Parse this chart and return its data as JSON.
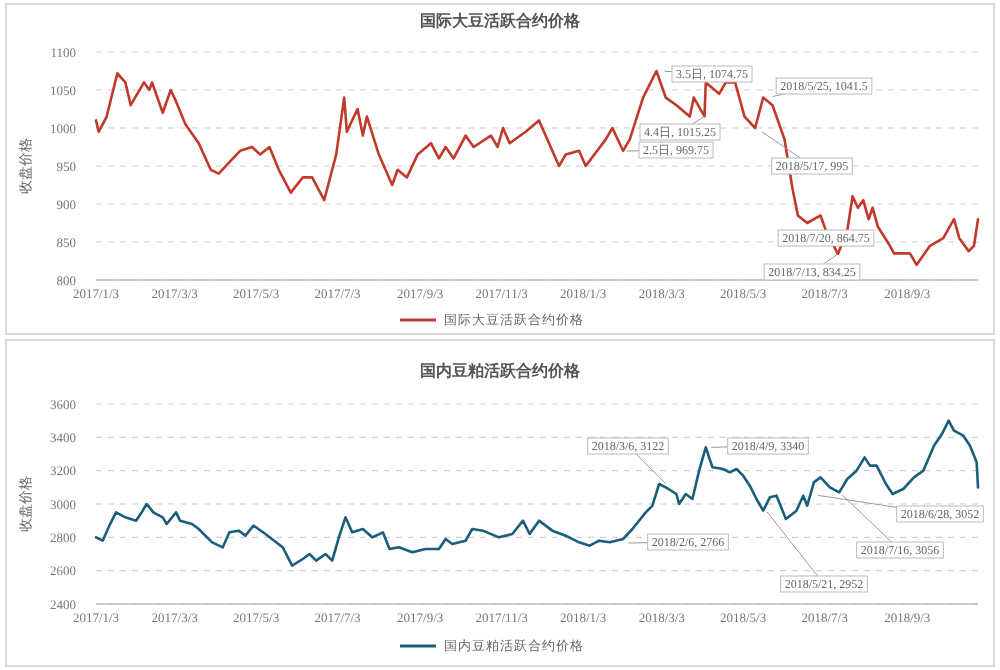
{
  "chart_data": [
    {
      "type": "line",
      "title": "国际大豆活跃合约价格",
      "ylabel": "收盘价格",
      "x": [
        "2017-01-03",
        "2017-01-05",
        "2017-01-11",
        "2017-01-19",
        "2017-01-25",
        "2017-01-29",
        "2017-02-08",
        "2017-02-12",
        "2017-02-14",
        "2017-02-22",
        "2017-02-28",
        "2017-03-04",
        "2017-03-11",
        "2017-03-21",
        "2017-03-30",
        "2017-04-05",
        "2017-04-13",
        "2017-04-21",
        "2017-04-30",
        "2017-05-06",
        "2017-05-13",
        "2017-05-20",
        "2017-05-29",
        "2017-06-07",
        "2017-06-14",
        "2017-06-23",
        "2017-07-02",
        "2017-07-08",
        "2017-07-10",
        "2017-07-18",
        "2017-07-22",
        "2017-07-25",
        "2017-08-03",
        "2017-08-13",
        "2017-08-17",
        "2017-08-24",
        "2017-09-01",
        "2017-09-11",
        "2017-09-17",
        "2017-09-22",
        "2017-09-28",
        "2017-10-07",
        "2017-10-13",
        "2017-10-26",
        "2017-10-31",
        "2017-11-04",
        "2017-11-09",
        "2017-11-21",
        "2017-12-01",
        "2017-12-11",
        "2017-12-16",
        "2017-12-21",
        "2017-12-31",
        "2018-01-05",
        "2018-01-20",
        "2018-01-25",
        "2018-02-02",
        "2018-02-07",
        "2018-02-17",
        "2018-02-27",
        "2018-03-06",
        "2018-03-14",
        "2018-03-24",
        "2018-03-27",
        "2018-04-04",
        "2018-04-05",
        "2018-04-15",
        "2018-04-20",
        "2018-04-27",
        "2018-05-04",
        "2018-05-12",
        "2018-05-18",
        "2018-05-25",
        "2018-06-03",
        "2018-06-09",
        "2018-06-13",
        "2018-06-20",
        "2018-06-30",
        "2018-07-04",
        "2018-07-13",
        "2018-07-20",
        "2018-07-24",
        "2018-07-28",
        "2018-08-01",
        "2018-08-05",
        "2018-08-08",
        "2018-08-12",
        "2018-08-21",
        "2018-08-24",
        "2018-09-05",
        "2018-09-10",
        "2018-09-20",
        "2018-09-30",
        "2018-10-08",
        "2018-10-12",
        "2018-10-19",
        "2018-10-23",
        "2018-10-26"
      ],
      "series": [
        {
          "name": "国际大豆活跃合约价格",
          "color": "#c0392b",
          "values": [
            1010,
            995,
            1015,
            1072,
            1060,
            1030,
            1060,
            1050,
            1060,
            1020,
            1050,
            1035,
            1005,
            980,
            945,
            940,
            955,
            970,
            975,
            965,
            975,
            945,
            915,
            935,
            935,
            905,
            965,
            1040,
            995,
            1025,
            990,
            1015,
            965,
            925,
            945,
            935,
            965,
            980,
            960,
            975,
            960,
            990,
            975,
            990,
            975,
            1000,
            980,
            995,
            1010,
            970,
            950,
            965,
            970,
            950,
            985,
            1000,
            970,
            985,
            1040,
            1075,
            1040,
            1030,
            1015,
            1040,
            1015.25,
            1060,
            1045,
            1060,
            1060,
            1015,
            1000,
            1040,
            1030,
            985,
            920,
            885,
            875,
            885,
            865,
            834.25,
            864.75,
            910,
            895,
            905,
            880,
            895,
            870,
            845,
            835,
            835,
            820,
            845,
            855,
            880,
            855,
            838,
            845,
            880
          ]
        }
      ],
      "xlim": [
        "2017-01-03",
        "2018-10-26"
      ],
      "xticks": [
        {
          "value": "2017-01-03",
          "label": "2017/1/3"
        },
        {
          "value": "2017-03-03",
          "label": "2017/3/3"
        },
        {
          "value": "2017-05-03",
          "label": "2017/5/3"
        },
        {
          "value": "2017-07-03",
          "label": "2017/7/3"
        },
        {
          "value": "2017-09-03",
          "label": "2017/9/3"
        },
        {
          "value": "2017-11-03",
          "label": "2017/11/3"
        },
        {
          "value": "2018-01-03",
          "label": "2018/1/3"
        },
        {
          "value": "2018-03-03",
          "label": "2018/3/3"
        },
        {
          "value": "2018-05-03",
          "label": "2018/5/3"
        },
        {
          "value": "2018-07-03",
          "label": "2018/7/3"
        },
        {
          "value": "2018-09-03",
          "label": "2018/9/3"
        }
      ],
      "ylim": [
        800,
        1100
      ],
      "yticks": [
        800,
        850,
        900,
        950,
        1000,
        1050,
        1100
      ],
      "grid": "y",
      "legend": "bottom",
      "annotations": [
        {
          "text": "3.5日, 1074.75",
          "x": "2018-03-05",
          "y": 1074.75
        },
        {
          "text": "2018/5/25, 1041.5",
          "x": "2018-05-25",
          "y": 1041.5
        },
        {
          "text": "4.4日, 1015.25",
          "x": "2018-04-04",
          "y": 1015.25
        },
        {
          "text": "2.5日, 969.75",
          "x": "2018-02-05",
          "y": 969.75
        },
        {
          "text": "2018/5/17, 995",
          "x": "2018-05-17",
          "y": 995
        },
        {
          "text": "2018/7/20, 864.75",
          "x": "2018-07-20",
          "y": 864.75
        },
        {
          "text": "2018/7/13, 834.25",
          "x": "2018-07-13",
          "y": 834.25
        }
      ]
    },
    {
      "type": "line",
      "title": "国内豆粕活跃合约价格",
      "ylabel": "收盘价格",
      "x": [
        "2017-01-03",
        "2017-01-08",
        "2017-01-13",
        "2017-01-18",
        "2017-01-25",
        "2017-02-02",
        "2017-02-07",
        "2017-02-10",
        "2017-02-15",
        "2017-02-22",
        "2017-02-25",
        "2017-03-04",
        "2017-03-07",
        "2017-03-16",
        "2017-03-21",
        "2017-03-31",
        "2017-04-08",
        "2017-04-13",
        "2017-04-20",
        "2017-04-25",
        "2017-05-01",
        "2017-05-10",
        "2017-05-18",
        "2017-05-23",
        "2017-05-30",
        "2017-06-07",
        "2017-06-12",
        "2017-06-17",
        "2017-06-24",
        "2017-06-29",
        "2017-07-04",
        "2017-07-09",
        "2017-07-14",
        "2017-07-22",
        "2017-07-29",
        "2017-08-06",
        "2017-08-11",
        "2017-08-18",
        "2017-08-28",
        "2017-09-07",
        "2017-09-17",
        "2017-09-22",
        "2017-09-27",
        "2017-10-07",
        "2017-10-12",
        "2017-10-20",
        "2017-11-01",
        "2017-11-11",
        "2017-11-19",
        "2017-11-24",
        "2017-12-01",
        "2017-12-11",
        "2017-12-21",
        "2017-12-31",
        "2018-01-08",
        "2018-01-15",
        "2018-01-23",
        "2018-02-02",
        "2018-02-09",
        "2018-02-19",
        "2018-02-24",
        "2018-03-01",
        "2018-03-06",
        "2018-03-14",
        "2018-03-16",
        "2018-03-21",
        "2018-03-26",
        "2018-03-31",
        "2018-04-05",
        "2018-04-10",
        "2018-04-18",
        "2018-04-23",
        "2018-04-28",
        "2018-05-03",
        "2018-05-08",
        "2018-05-13",
        "2018-05-18",
        "2018-05-23",
        "2018-05-28",
        "2018-06-04",
        "2018-06-12",
        "2018-06-17",
        "2018-06-20",
        "2018-06-25",
        "2018-06-30",
        "2018-07-07",
        "2018-07-14",
        "2018-07-20",
        "2018-07-27",
        "2018-08-02",
        "2018-08-06",
        "2018-08-11",
        "2018-08-18",
        "2018-08-23",
        "2018-08-31",
        "2018-09-08",
        "2018-09-15",
        "2018-09-23",
        "2018-09-29",
        "2018-10-04",
        "2018-10-08",
        "2018-10-15",
        "2018-10-20",
        "2018-10-25",
        "2018-10-26"
      ],
      "series": [
        {
          "name": "国内豆粕活跃合约价格",
          "color": "#1b5e7b",
          "values": [
            2800,
            2780,
            2870,
            2950,
            2920,
            2900,
            2960,
            3000,
            2950,
            2920,
            2880,
            2950,
            2900,
            2880,
            2850,
            2770,
            2740,
            2830,
            2840,
            2810,
            2870,
            2820,
            2770,
            2740,
            2630,
            2670,
            2700,
            2660,
            2700,
            2660,
            2800,
            2920,
            2830,
            2850,
            2800,
            2830,
            2730,
            2740,
            2710,
            2730,
            2730,
            2790,
            2760,
            2780,
            2850,
            2840,
            2800,
            2820,
            2900,
            2820,
            2900,
            2840,
            2810,
            2770,
            2750,
            2780,
            2770,
            2790,
            2850,
            2950,
            2990,
            3120,
            3100,
            3060,
            3000,
            3060,
            3030,
            3200,
            3340,
            3220,
            3210,
            3190,
            3210,
            3170,
            3110,
            3030,
            2960,
            3040,
            3050,
            2910,
            2960,
            3050,
            2990,
            3130,
            3160,
            3100,
            3070,
            3150,
            3200,
            3280,
            3230,
            3230,
            3120,
            3060,
            3090,
            3160,
            3200,
            3350,
            3420,
            3500,
            3440,
            3410,
            3350,
            3250,
            3100
          ]
        }
      ],
      "xlim": [
        "2017-01-03",
        "2018-10-26"
      ],
      "xticks": [
        {
          "value": "2017-01-03",
          "label": "2017/1/3"
        },
        {
          "value": "2017-03-03",
          "label": "2017/3/3"
        },
        {
          "value": "2017-05-03",
          "label": "2017/5/3"
        },
        {
          "value": "2017-07-03",
          "label": "2017/7/3"
        },
        {
          "value": "2017-09-03",
          "label": "2017/9/3"
        },
        {
          "value": "2017-11-03",
          "label": "2017/11/3"
        },
        {
          "value": "2018-01-03",
          "label": "2018/1/3"
        },
        {
          "value": "2018-03-03",
          "label": "2018/3/3"
        },
        {
          "value": "2018-05-03",
          "label": "2018/5/3"
        },
        {
          "value": "2018-07-03",
          "label": "2018/7/3"
        },
        {
          "value": "2018-09-03",
          "label": "2018/9/3"
        }
      ],
      "ylim": [
        2400,
        3600
      ],
      "yticks": [
        2400,
        2600,
        2800,
        3000,
        3200,
        3400,
        3600
      ],
      "grid": "y",
      "legend": "bottom",
      "annotations": [
        {
          "text": "2018/3/6, 3122",
          "x": "2018-03-06",
          "y": 3122
        },
        {
          "text": "2018/4/9, 3340",
          "x": "2018-04-09",
          "y": 3340
        },
        {
          "text": "2018/2/6, 2766",
          "x": "2018-02-06",
          "y": 2766
        },
        {
          "text": "2018/5/21, 2952",
          "x": "2018-05-21",
          "y": 2952
        },
        {
          "text": "2018/7/16, 3056",
          "x": "2018-07-16",
          "y": 3056
        },
        {
          "text": "2018/6/28, 3052",
          "x": "2018-06-28",
          "y": 3052
        }
      ]
    }
  ]
}
